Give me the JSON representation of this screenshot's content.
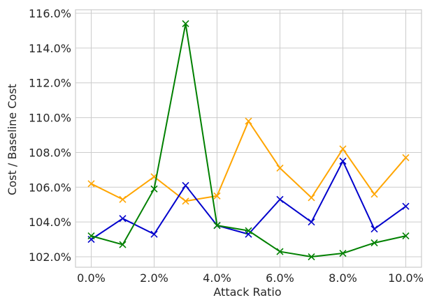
{
  "chart_data": {
    "type": "line",
    "title": "",
    "xlabel": "Attack Ratio",
    "ylabel": "Cost / Baseline Cost",
    "x": [
      0,
      1,
      2,
      3,
      4,
      5,
      6,
      7,
      8,
      9,
      10
    ],
    "xlim": [
      -0.5,
      10.5
    ],
    "ylim": [
      101.4,
      116.2
    ],
    "xticks": [
      {
        "value": 0,
        "label": "0.0%"
      },
      {
        "value": 2,
        "label": "2.0%"
      },
      {
        "value": 4,
        "label": "4.0%"
      },
      {
        "value": 6,
        "label": "6.0%"
      },
      {
        "value": 8,
        "label": "8.0%"
      },
      {
        "value": 10,
        "label": "10.0%"
      }
    ],
    "yticks": [
      {
        "value": 102,
        "label": "102.0%"
      },
      {
        "value": 104,
        "label": "104.0%"
      },
      {
        "value": 106,
        "label": "106.0%"
      },
      {
        "value": 108,
        "label": "108.0%"
      },
      {
        "value": 110,
        "label": "110.0%"
      },
      {
        "value": 112,
        "label": "112.0%"
      },
      {
        "value": 114,
        "label": "114.0%"
      },
      {
        "value": 116,
        "label": "116.0%"
      }
    ],
    "grid": true,
    "marker": "x",
    "series": [
      {
        "color": "#ffa500",
        "values": [
          106.2,
          105.3,
          106.6,
          105.2,
          105.5,
          109.8,
          107.1,
          105.4,
          108.2,
          105.6,
          107.7
        ]
      },
      {
        "color": "#0000cc",
        "values": [
          103.0,
          104.2,
          103.3,
          106.1,
          103.8,
          103.3,
          105.3,
          104.0,
          107.5,
          103.6,
          104.9
        ]
      },
      {
        "color": "#008000",
        "values": [
          103.2,
          102.7,
          105.9,
          115.4,
          103.8,
          103.5,
          102.3,
          102.0,
          102.2,
          102.8,
          103.2
        ]
      }
    ]
  }
}
